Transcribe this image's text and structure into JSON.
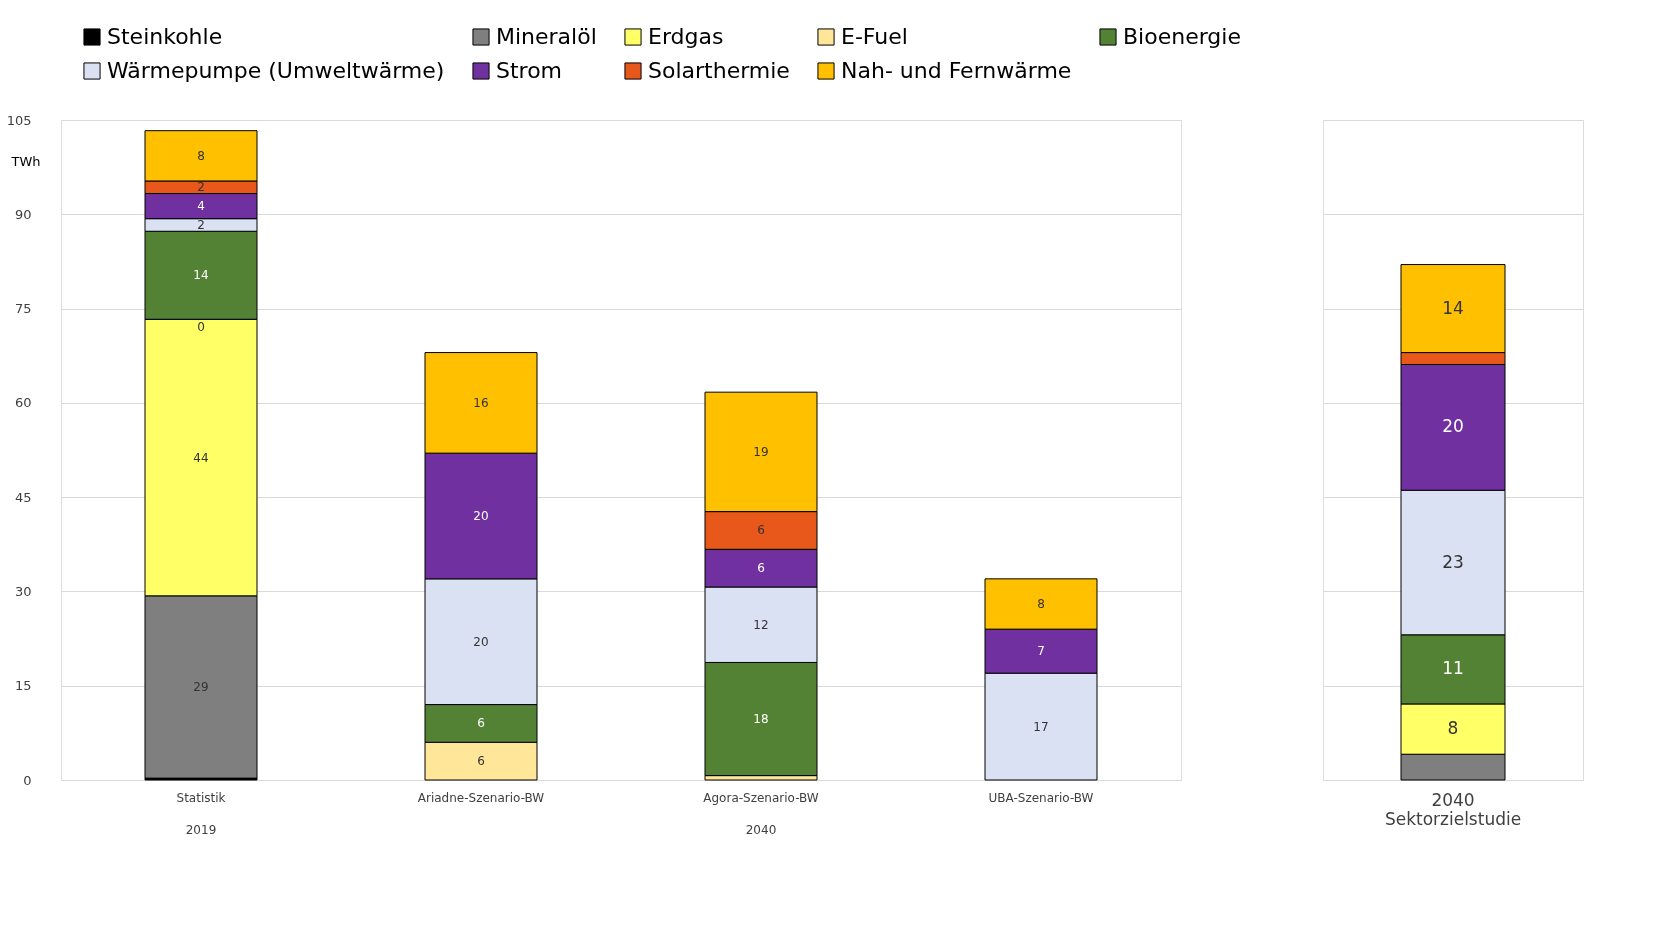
{
  "chart_data": [
    {
      "type": "bar",
      "stacked": true,
      "ylabel": "TWh",
      "categories": [
        "Statistik",
        "Ariadne-Szenario-BW",
        "Agora-Szenario-BW",
        "UBA-Szenario-BW"
      ],
      "ylim": [
        0,
        105
      ],
      "yticks": [
        0,
        15,
        30,
        45,
        60,
        75,
        90,
        105
      ],
      "grid": "y",
      "legend": "top",
      "annotations": [
        "2019",
        "2040",
        {
          "text": "0",
          "x": "Statistik",
          "y": 73.3
        }
      ],
      "series": [
        {
          "name": "Steinkohle",
          "color": "#000000",
          "values": [
            0.3,
            null,
            null,
            null
          ],
          "value_labels": [
            null,
            null,
            null,
            null
          ]
        },
        {
          "name": "Mineralöl",
          "color": "#7f7f7f",
          "values": [
            29,
            null,
            null,
            null
          ],
          "value_labels": [
            "29",
            null,
            null,
            null
          ]
        },
        {
          "name": "Erdgas",
          "color": "#ffff66",
          "values": [
            44,
            null,
            null,
            null
          ],
          "value_labels": [
            "44",
            null,
            null,
            null
          ]
        },
        {
          "name": "E-Fuel",
          "color": "#ffe699",
          "values": [
            0,
            6,
            0.7,
            null
          ],
          "value_labels": [
            null,
            "6",
            null,
            null
          ]
        },
        {
          "name": "Bioenergie",
          "color": "#548235",
          "values": [
            14,
            6,
            18,
            null
          ],
          "value_labels": [
            "14",
            "6",
            "18",
            null
          ]
        },
        {
          "name": "Wärmepumpe (Umweltwärme)",
          "color": "#d9e1f2",
          "values": [
            2,
            20,
            12,
            17
          ],
          "value_labels": [
            "2",
            "20",
            "12",
            "17"
          ]
        },
        {
          "name": "Strom",
          "color": "#7030a0",
          "values": [
            4,
            20,
            6,
            7
          ],
          "value_labels": [
            "4",
            "20",
            "6",
            "7"
          ]
        },
        {
          "name": "Solarthermie",
          "color": "#e8581a",
          "values": [
            2,
            null,
            6,
            null
          ],
          "value_labels": [
            "2",
            null,
            "6",
            null
          ]
        },
        {
          "name": "Nah- und Fernwärme",
          "color": "#ffc000",
          "values": [
            8,
            16,
            19,
            8
          ],
          "value_labels": [
            "8",
            "16",
            "19",
            "8"
          ]
        }
      ]
    },
    {
      "type": "bar",
      "stacked": true,
      "categories": [
        "2040 Sektorzielstudie"
      ],
      "ylim": [
        0,
        105
      ],
      "yticks": [
        0,
        15,
        30,
        45,
        60,
        75,
        90,
        105
      ],
      "grid": "y",
      "tick_labels": "x",
      "series": [
        {
          "color": "#000000",
          "values": [
            null
          ],
          "value_labels": [
            null
          ]
        },
        {
          "color": "#7f7f7f",
          "values": [
            4.1
          ],
          "value_labels": [
            null
          ]
        },
        {
          "color": "#ffff66",
          "values": [
            8
          ],
          "value_labels": [
            "8"
          ]
        },
        {
          "color": "#ffe699",
          "values": [
            null
          ],
          "value_labels": [
            null
          ]
        },
        {
          "color": "#548235",
          "values": [
            11
          ],
          "value_labels": [
            "11"
          ]
        },
        {
          "color": "#d9e1f2",
          "values": [
            23
          ],
          "value_labels": [
            "23"
          ]
        },
        {
          "color": "#7030a0",
          "values": [
            20
          ],
          "value_labels": [
            "20"
          ]
        },
        {
          "color": "#e8581a",
          "values": [
            1.9
          ],
          "value_labels": [
            null
          ]
        },
        {
          "color": "#ffc000",
          "values": [
            14
          ],
          "value_labels": [
            "14"
          ]
        }
      ]
    }
  ]
}
